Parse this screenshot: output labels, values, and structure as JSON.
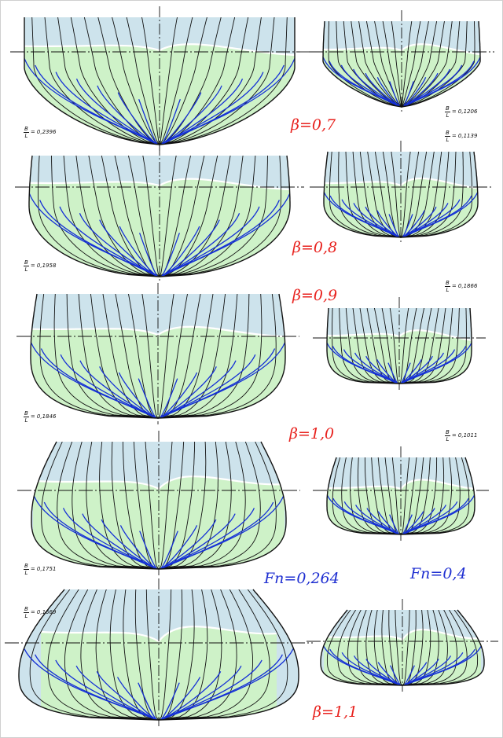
{
  "colors": {
    "above_water": "#cde3ec",
    "below_water": "#cef2c8",
    "frame_lines": "#111111",
    "flow_lines": "#1530d6",
    "waterline": "#ffffff",
    "beta_label": "#e8221e",
    "fn_label": "#1f2fd1"
  },
  "labels": {
    "beta_07": "β=0,7",
    "beta_08": "β=0,8",
    "beta_09": "β=0,9",
    "beta_10": "β=1,0",
    "beta_11": "β=1,1",
    "fn_low": "Fn=0,264",
    "fn_high": "Fn=0,4"
  },
  "ratios": [
    {
      "num": "B",
      "den": "L",
      "value": "= 0,2396"
    },
    {
      "num": "B",
      "den": "L",
      "value": "= 0,1206"
    },
    {
      "num": "B",
      "den": "L",
      "value": "= 0,1139"
    },
    {
      "num": "B",
      "den": "L",
      "value": "= 0,1958"
    },
    {
      "num": "B",
      "den": "L",
      "value": "= 0,1866"
    },
    {
      "num": "B",
      "den": "L",
      "value": "= 0,1846"
    },
    {
      "num": "B",
      "den": "L",
      "value": "= 0,1011"
    },
    {
      "num": "B",
      "den": "L",
      "value": "= 0,1751"
    },
    {
      "num": "B",
      "den": "L",
      "value": "= 0,1669"
    }
  ]
}
